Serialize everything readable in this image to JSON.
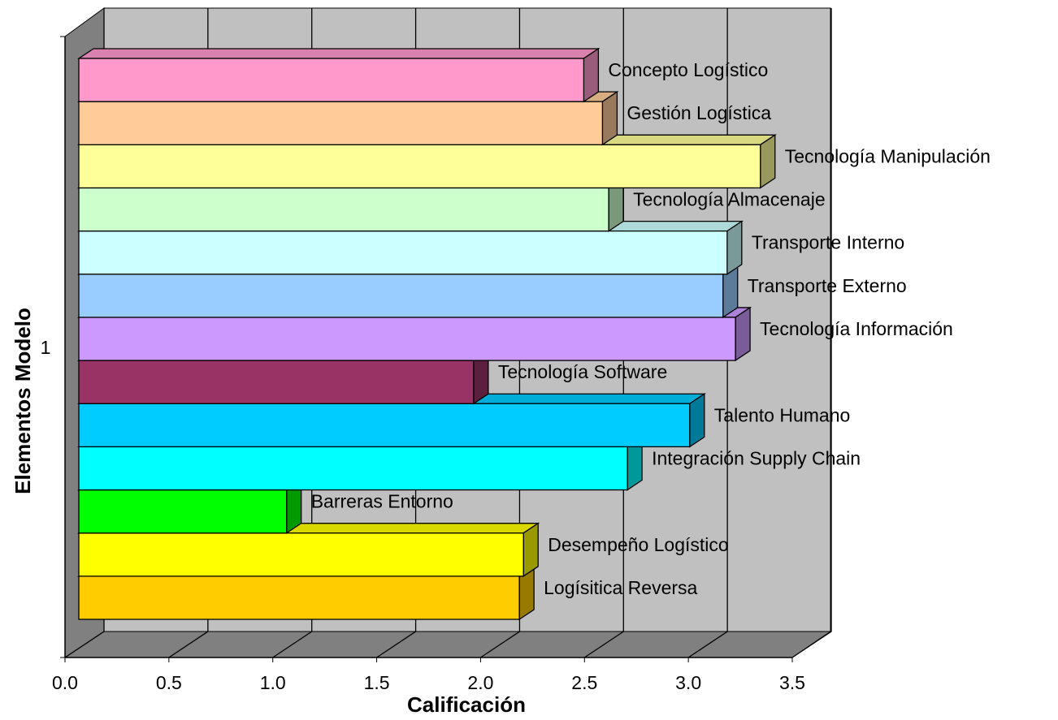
{
  "chart_data": {
    "type": "bar3d",
    "orientation": "horizontal",
    "x_label": "Calificación",
    "y_label": "Elementos Modelo",
    "categories": [
      "1"
    ],
    "xlim": [
      0,
      3.5
    ],
    "xticks": [
      {
        "value": 0,
        "label": "0.0"
      },
      0.5,
      {
        "value": 1,
        "label": "1.0"
      },
      1.5,
      {
        "value": 2,
        "label": "2.0"
      },
      2.5,
      {
        "value": 3,
        "label": "3.0"
      },
      3.5
    ],
    "grid": true,
    "series": [
      {
        "name": "Concepto Logístico",
        "color": "#ff99cc",
        "values": [
          2.43
        ]
      },
      {
        "name": "Gestión Logística",
        "color": "#ffcc99",
        "values": [
          2.52
        ]
      },
      {
        "name": "Tecnología Manipulación",
        "color": "#ffff99",
        "values": [
          3.28
        ]
      },
      {
        "name": "Tecnología Almacenaje",
        "color": "#ccffcc",
        "values": [
          2.55
        ]
      },
      {
        "name": "Transporte Interno",
        "color": "#ccffff",
        "values": [
          3.12
        ]
      },
      {
        "name": "Transporte Externo",
        "color": "#99ccff",
        "values": [
          3.1
        ]
      },
      {
        "name": "Tecnología Información",
        "color": "#cc99ff",
        "values": [
          3.16
        ]
      },
      {
        "name": "Tecnología Software",
        "color": "#993366",
        "values": [
          1.9
        ]
      },
      {
        "name": "Talento Humano",
        "color": "#00ccff",
        "values": [
          2.94
        ]
      },
      {
        "name": "Integración Supply Chain",
        "color": "#00ffff",
        "values": [
          2.64
        ]
      },
      {
        "name": "Barreras Entorno",
        "color": "#00ff00",
        "values": [
          1.0
        ]
      },
      {
        "name": "Desempeño Logístico",
        "color": "#ffff00",
        "values": [
          2.14
        ]
      },
      {
        "name": "Logísitica Reversa",
        "color": "#ffcc00",
        "values": [
          2.12
        ]
      }
    ]
  }
}
